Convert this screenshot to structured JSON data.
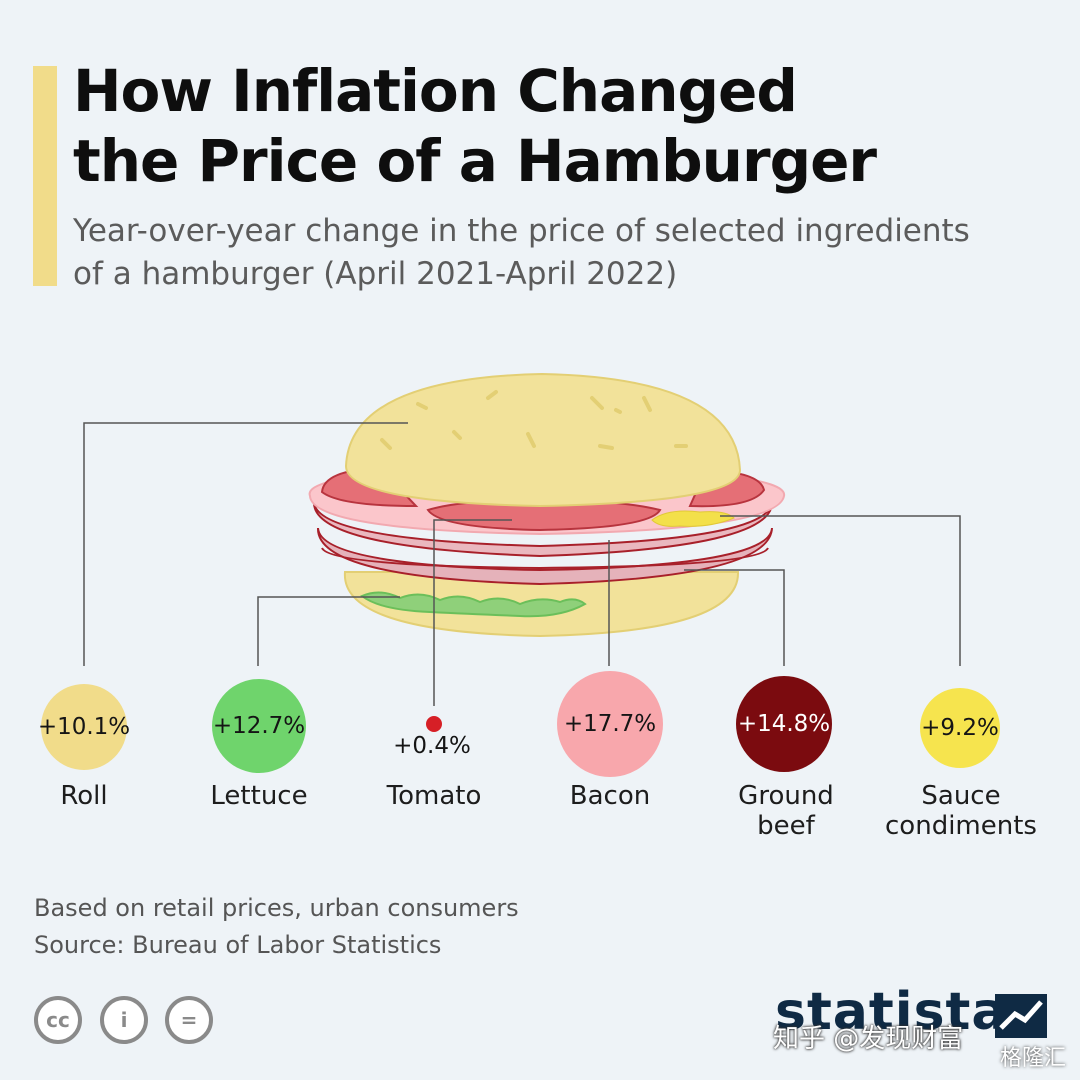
{
  "header": {
    "title_line1": "How Inflation Changed",
    "title_line2": "the Price of a Hamburger",
    "subtitle_line1": "Year-over-year change in the price of selected ingredients",
    "subtitle_line2": "of a hamburger (April 2021-April 2022)"
  },
  "chart_data": {
    "type": "bubble",
    "title": "How Inflation Changed the Price of a Hamburger",
    "subtitle": "Year-over-year change in the price of selected ingredients of a hamburger (April 2021-April 2022)",
    "unit": "%",
    "items": [
      {
        "name": "Roll",
        "value": 10.1,
        "label": "+10.1%",
        "color": "#f1dc8a"
      },
      {
        "name": "Lettuce",
        "value": 12.7,
        "label": "+12.7%",
        "color": "#6fd46c"
      },
      {
        "name": "Tomato",
        "value": 0.4,
        "label": "+0.4%",
        "color": "#d61f26"
      },
      {
        "name": "Bacon",
        "value": 17.7,
        "label": "+17.7%",
        "color": "#f8a7ac"
      },
      {
        "name": "Ground beef",
        "value": 14.8,
        "label": "+14.8%",
        "color": "#7b0b0f",
        "label_lines": [
          "Ground",
          "beef"
        ]
      },
      {
        "name": "Sauce condiments",
        "value": 9.2,
        "label": "+9.2%",
        "color": "#f6e44e",
        "label_lines": [
          "Sauce",
          "condiments"
        ]
      }
    ]
  },
  "footer": {
    "note": "Based on retail prices, urban consumers",
    "source": "Source: Bureau of Labor Statistics",
    "brand": "statista",
    "watermark": "知乎 @发现财富",
    "watermark2": "格隆汇",
    "license_icons": [
      "cc-icon",
      "attribution-icon",
      "no-derivatives-icon"
    ],
    "license_glyphs": [
      "cc",
      "i",
      "="
    ]
  },
  "colors": {
    "background": "#eef3f7",
    "accent": "#f1dc8a",
    "title": "#0e0e0e",
    "brand": "#0f2a44"
  }
}
